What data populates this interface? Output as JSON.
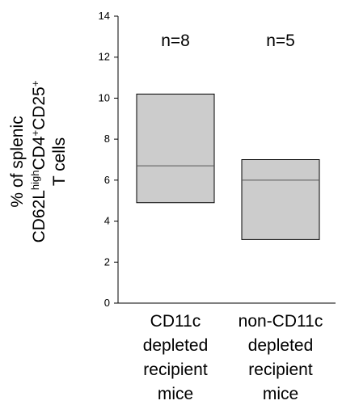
{
  "chart_data": {
    "type": "box",
    "ylabel_lines": [
      {
        "parts": [
          {
            "text": "% of splenic",
            "sup": false
          }
        ]
      },
      {
        "parts": [
          {
            "text": "CD62L",
            "sup": false
          },
          {
            "text": "high",
            "sup": true
          },
          {
            "text": "CD4",
            "sup": false
          },
          {
            "text": "+",
            "sup": true
          },
          {
            "text": "CD25",
            "sup": false
          },
          {
            "text": "+",
            "sup": true
          }
        ]
      },
      {
        "parts": [
          {
            "text": "T cells",
            "sup": false
          }
        ]
      }
    ],
    "ylim": [
      0,
      14
    ],
    "yticks": [
      0,
      2,
      4,
      6,
      8,
      10,
      12,
      14
    ],
    "grid": false,
    "box_color": "#cccccc",
    "groups": [
      {
        "label_lines": [
          "CD11c",
          "depleted",
          "recipient",
          "mice"
        ],
        "n_label": "n=8",
        "q1": 4.9,
        "median": 6.7,
        "q3": 10.2
      },
      {
        "label_lines": [
          "non-CD11c",
          "depleted",
          "recipient",
          "mice"
        ],
        "n_label": "n=5",
        "q1": 3.1,
        "median": 6.0,
        "q3": 7.0
      }
    ]
  }
}
